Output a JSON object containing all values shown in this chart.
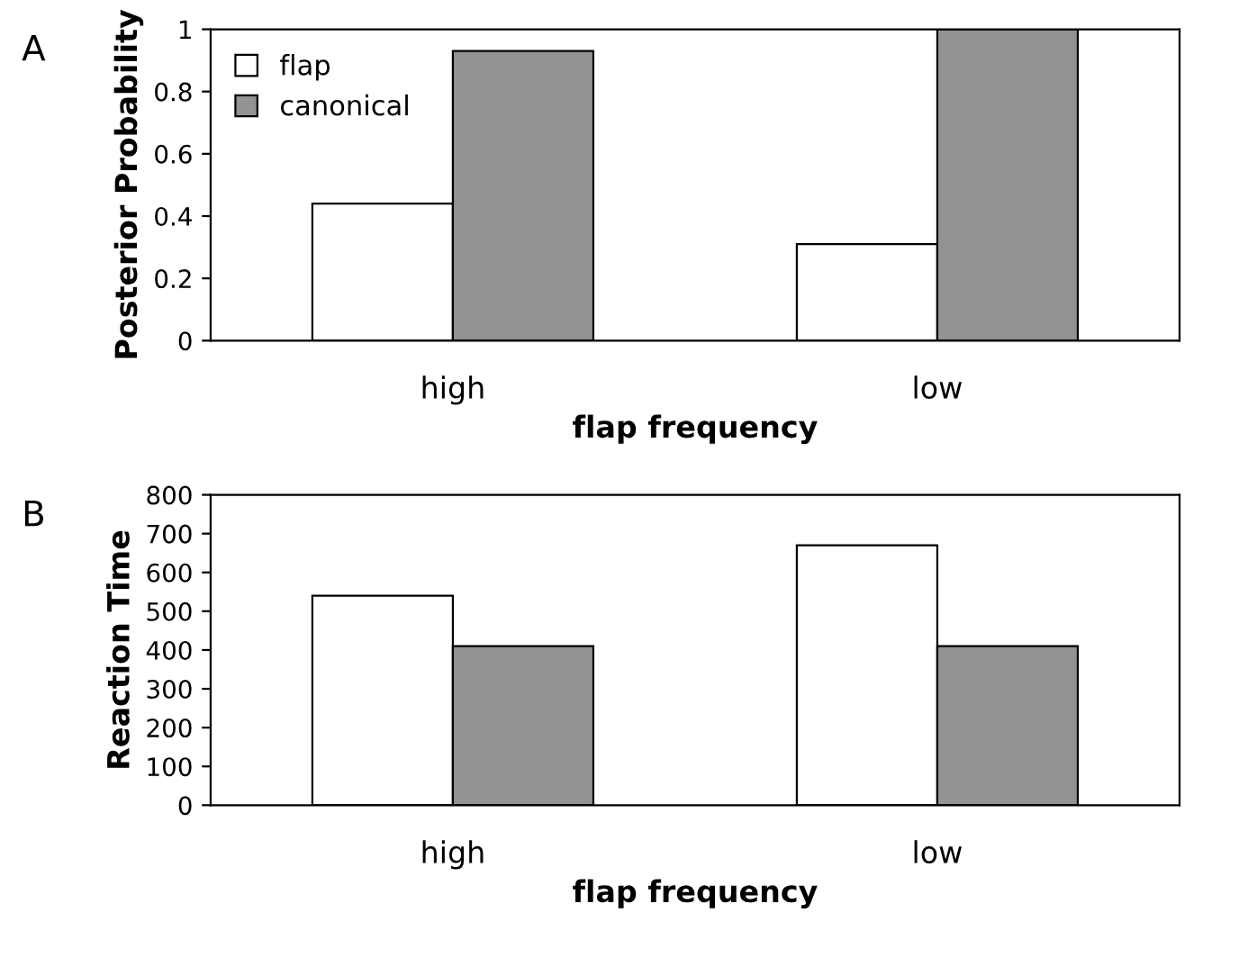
{
  "chart_data": [
    {
      "type": "bar",
      "title": "A",
      "categories": [
        "high",
        "low"
      ],
      "xlabel": "flap frequency",
      "ylabel": "Posterior Probability",
      "ylim": [
        0,
        1
      ],
      "yticks": [
        0,
        0.2,
        0.4,
        0.6,
        0.8,
        1
      ],
      "legend": "top left",
      "grid": false,
      "series": [
        {
          "name": "flap",
          "color": "#ffffff",
          "values": [
            0.44,
            0.31
          ]
        },
        {
          "name": "canonical",
          "color": "#939393",
          "values": [
            0.93,
            1
          ]
        }
      ]
    },
    {
      "type": "bar",
      "title": "B",
      "categories": [
        "high",
        "low"
      ],
      "xlabel": "flap frequency",
      "ylabel": "Reaction Time",
      "ylim": [
        0,
        800
      ],
      "yticks": [
        0,
        100,
        200,
        300,
        400,
        500,
        600,
        700,
        800
      ],
      "grid": false,
      "series": [
        {
          "color": "#ffffff",
          "values": [
            540,
            670
          ]
        },
        {
          "color": "#939393",
          "values": [
            410,
            410
          ]
        }
      ]
    }
  ]
}
